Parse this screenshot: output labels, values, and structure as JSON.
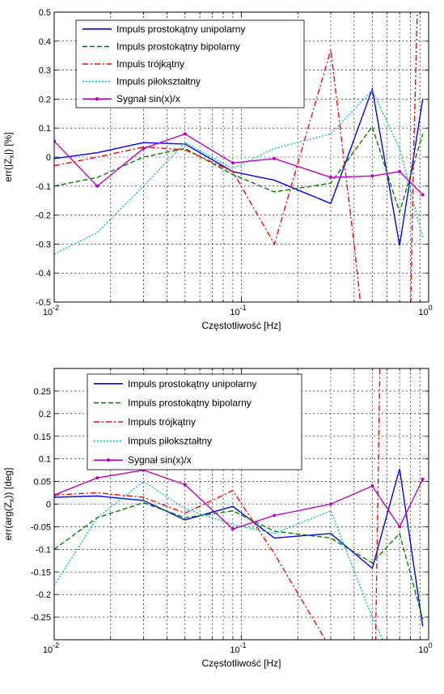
{
  "chart_data": [
    {
      "type": "line",
      "xscale": "log",
      "xlim": [
        0.01,
        1
      ],
      "ylim": [
        -0.5,
        0.5
      ],
      "xlabel": "Częstotliwość [Hz]",
      "ylabel": "err(|Z_x|) [%]",
      "xticks": [
        0.01,
        0.1,
        1
      ],
      "xtick_labels": [
        {
          "base": "10",
          "exp": "-2"
        },
        {
          "base": "10",
          "exp": "-1"
        },
        {
          "base": "10",
          "exp": "0"
        }
      ],
      "yticks": [
        -0.5,
        -0.4,
        -0.3,
        -0.2,
        -0.1,
        0,
        0.1,
        0.2,
        0.3,
        0.4,
        0.5
      ],
      "ytick_labels": [
        "-0.5",
        "-0.4",
        "-0.3",
        "-0.2",
        "-0.1",
        "0",
        "0.1",
        "0.2",
        "0.3",
        "0.4",
        "0.5"
      ],
      "grid": true,
      "legend_position": "top-left",
      "series": [
        {
          "name": "Impuls prostokątny unipolarny",
          "color": "#0000ff",
          "style": "solid",
          "x": [
            0.01,
            0.017,
            0.03,
            0.05,
            0.09,
            0.15,
            0.3,
            0.5,
            0.7,
            0.93
          ],
          "y": [
            -0.005,
            0.015,
            0.05,
            0.045,
            -0.05,
            -0.08,
            -0.16,
            0.235,
            -0.305,
            0.2
          ]
        },
        {
          "name": "Impuls prostokątny bipolarny",
          "color": "#008000",
          "style": "dashed",
          "x": [
            0.01,
            0.017,
            0.03,
            0.05,
            0.09,
            0.15,
            0.3,
            0.5,
            0.7,
            0.93
          ],
          "y": [
            -0.1,
            -0.07,
            0.0,
            0.03,
            -0.06,
            -0.12,
            -0.09,
            0.105,
            -0.19,
            0.08
          ]
        },
        {
          "name": "Impuls trójkątny",
          "color": "#ff0000",
          "style": "dashdot",
          "x": [
            0.01,
            0.017,
            0.03,
            0.05,
            0.09,
            0.15,
            0.3,
            0.4,
            0.44,
            0.8,
            0.83,
            0.87,
            0.9
          ],
          "y": [
            -0.03,
            0.0,
            0.035,
            0.025,
            -0.05,
            -0.3,
            0.37,
            -0.3,
            -0.55,
            -0.55,
            0.0,
            0.5,
            0.55
          ]
        },
        {
          "name": "Impuls piłokształtny",
          "color": "#00c0c0",
          "style": "dotted",
          "x": [
            0.01,
            0.017,
            0.03,
            0.05,
            0.09,
            0.15,
            0.3,
            0.5,
            0.7,
            0.93
          ],
          "y": [
            -0.335,
            -0.26,
            -0.1,
            0.05,
            -0.04,
            0.03,
            0.08,
            0.23,
            0.03,
            -0.28
          ]
        },
        {
          "name": "Sygnał sin(x)/x",
          "color": "#c000c0",
          "style": "solid-marker",
          "x": [
            0.01,
            0.017,
            0.03,
            0.05,
            0.09,
            0.15,
            0.3,
            0.5,
            0.7,
            0.93
          ],
          "y": [
            0.055,
            -0.1,
            0.03,
            0.08,
            -0.02,
            -0.005,
            -0.07,
            -0.065,
            -0.05,
            -0.13
          ]
        }
      ]
    },
    {
      "type": "line",
      "xscale": "log",
      "xlim": [
        0.01,
        1
      ],
      "ylim": [
        -0.3,
        0.3
      ],
      "xlabel": "Częstotliwość [Hz]",
      "ylabel": "err(arg(Z_x)) [deg]",
      "xticks": [
        0.01,
        0.1,
        1
      ],
      "xtick_labels": [
        {
          "base": "10",
          "exp": "-2"
        },
        {
          "base": "10",
          "exp": "-1"
        },
        {
          "base": "10",
          "exp": "0"
        }
      ],
      "yticks": [
        -0.25,
        -0.2,
        -0.15,
        -0.1,
        -0.05,
        0,
        0.05,
        0.1,
        0.15,
        0.2,
        0.25
      ],
      "ytick_labels": [
        "-0.25",
        "-0.2",
        "-0.15",
        "-0.1",
        "-0.05",
        "0",
        "0.05",
        "0.1",
        "0.15",
        "0.2",
        "0.25"
      ],
      "grid": true,
      "legend_position": "top-left",
      "series": [
        {
          "name": "Impuls prostokątny unipolarny",
          "color": "#0000ff",
          "style": "solid",
          "x": [
            0.01,
            0.017,
            0.03,
            0.05,
            0.09,
            0.15,
            0.3,
            0.5,
            0.7,
            0.93
          ],
          "y": [
            0.015,
            0.018,
            0.008,
            -0.035,
            -0.005,
            -0.075,
            -0.065,
            -0.142,
            0.078,
            -0.27
          ]
        },
        {
          "name": "Impuls prostokątny bipolarny",
          "color": "#008000",
          "style": "dashed",
          "x": [
            0.01,
            0.017,
            0.03,
            0.05,
            0.09,
            0.15,
            0.3,
            0.5,
            0.7,
            0.93
          ],
          "y": [
            -0.1,
            -0.03,
            0.003,
            -0.03,
            -0.015,
            -0.06,
            -0.075,
            -0.13,
            -0.065,
            -0.255
          ]
        },
        {
          "name": "Impuls trójkątny",
          "color": "#ff0000",
          "style": "dashdot",
          "x": [
            0.01,
            0.017,
            0.03,
            0.05,
            0.09,
            0.15,
            0.3,
            0.5,
            0.52,
            0.55,
            0.57
          ],
          "y": [
            0.02,
            0.025,
            0.015,
            -0.02,
            0.03,
            -0.11,
            -0.32,
            -0.32,
            -0.32,
            0.32,
            0.32
          ]
        },
        {
          "name": "Impuls piłokształtny",
          "color": "#00c0c0",
          "style": "dotted",
          "x": [
            0.01,
            0.017,
            0.03,
            0.05,
            0.09,
            0.15,
            0.3,
            0.5,
            0.6
          ],
          "y": [
            -0.18,
            -0.03,
            0.05,
            -0.01,
            -0.045,
            -0.065,
            -0.015,
            -0.25,
            -0.32
          ]
        },
        {
          "name": "Sygnał sin(x)/x",
          "color": "#c000c0",
          "style": "solid-marker",
          "x": [
            0.01,
            0.017,
            0.03,
            0.05,
            0.09,
            0.15,
            0.3,
            0.5,
            0.7,
            0.93
          ],
          "y": [
            0.02,
            0.058,
            0.075,
            0.043,
            -0.055,
            -0.025,
            0.0,
            0.04,
            -0.05,
            0.055
          ]
        }
      ]
    }
  ]
}
